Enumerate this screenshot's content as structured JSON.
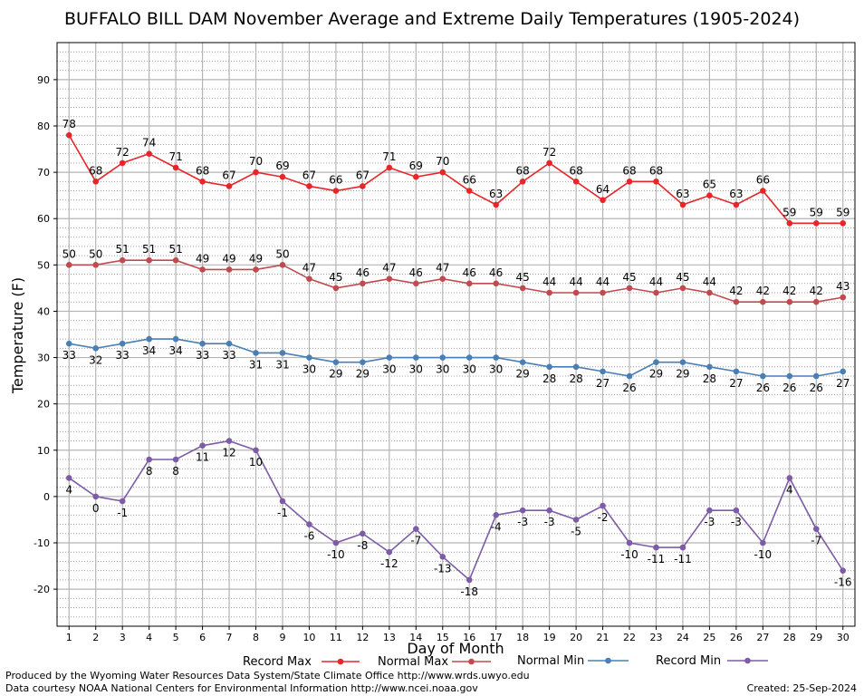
{
  "chart_data": {
    "type": "line",
    "title": "BUFFALO BILL DAM November Average and Extreme Daily Temperatures (1905-2024)",
    "xlabel": "Day of Month",
    "ylabel": "Temperature (F)",
    "ylim": [
      -28,
      98
    ],
    "xlim": [
      0.55,
      30.45
    ],
    "y_ticks": [
      -20,
      -10,
      0,
      10,
      20,
      30,
      40,
      50,
      60,
      70,
      80,
      90
    ],
    "grid": true,
    "legend_position": "bottom",
    "x": [
      1,
      2,
      3,
      4,
      5,
      6,
      7,
      8,
      9,
      10,
      11,
      12,
      13,
      14,
      15,
      16,
      17,
      18,
      19,
      20,
      21,
      22,
      23,
      24,
      25,
      26,
      27,
      28,
      29,
      30
    ],
    "series": [
      {
        "name": "Record Max",
        "color": "#e8262a",
        "label_position": "above",
        "values": [
          78,
          68,
          72,
          74,
          71,
          68,
          67,
          70,
          69,
          67,
          66,
          67,
          71,
          69,
          70,
          66,
          63,
          68,
          72,
          68,
          64,
          68,
          68,
          63,
          65,
          63,
          66,
          59,
          59,
          59
        ]
      },
      {
        "name": "Normal Max",
        "color": "#c04a4f",
        "label_position": "above",
        "values": [
          50,
          50,
          51,
          51,
          51,
          49,
          49,
          49,
          50,
          47,
          45,
          46,
          47,
          46,
          47,
          46,
          46,
          45,
          44,
          44,
          44,
          45,
          44,
          45,
          44,
          42,
          42,
          42,
          42,
          43
        ]
      },
      {
        "name": "Normal Min",
        "color": "#4a7fb5",
        "label_position": "below",
        "values": [
          33,
          32,
          33,
          34,
          34,
          33,
          33,
          31,
          31,
          30,
          29,
          29,
          30,
          30,
          30,
          30,
          30,
          29,
          28,
          28,
          27,
          26,
          29,
          29,
          28,
          27,
          26,
          26,
          26,
          27
        ]
      },
      {
        "name": "Record Min",
        "color": "#7d5ba6",
        "label_position": "below",
        "values": [
          4,
          0,
          -1,
          8,
          8,
          11,
          12,
          10,
          -1,
          -6,
          -10,
          -8,
          -12,
          -7,
          -13,
          -18,
          -4,
          -3,
          -3,
          -5,
          -2,
          -10,
          -11,
          -11,
          -3,
          -3,
          -10,
          4,
          -7,
          -16
        ]
      }
    ]
  },
  "footer": {
    "produced_by": "Produced by the Wyoming Water Resources Data System/State Climate Office http://www.wrds.uwyo.edu",
    "courtesy": "Data courtesy NOAA National Centers for Environmental Information http://www.ncei.noaa.gov",
    "created": "Created:  25-Sep-2024"
  }
}
